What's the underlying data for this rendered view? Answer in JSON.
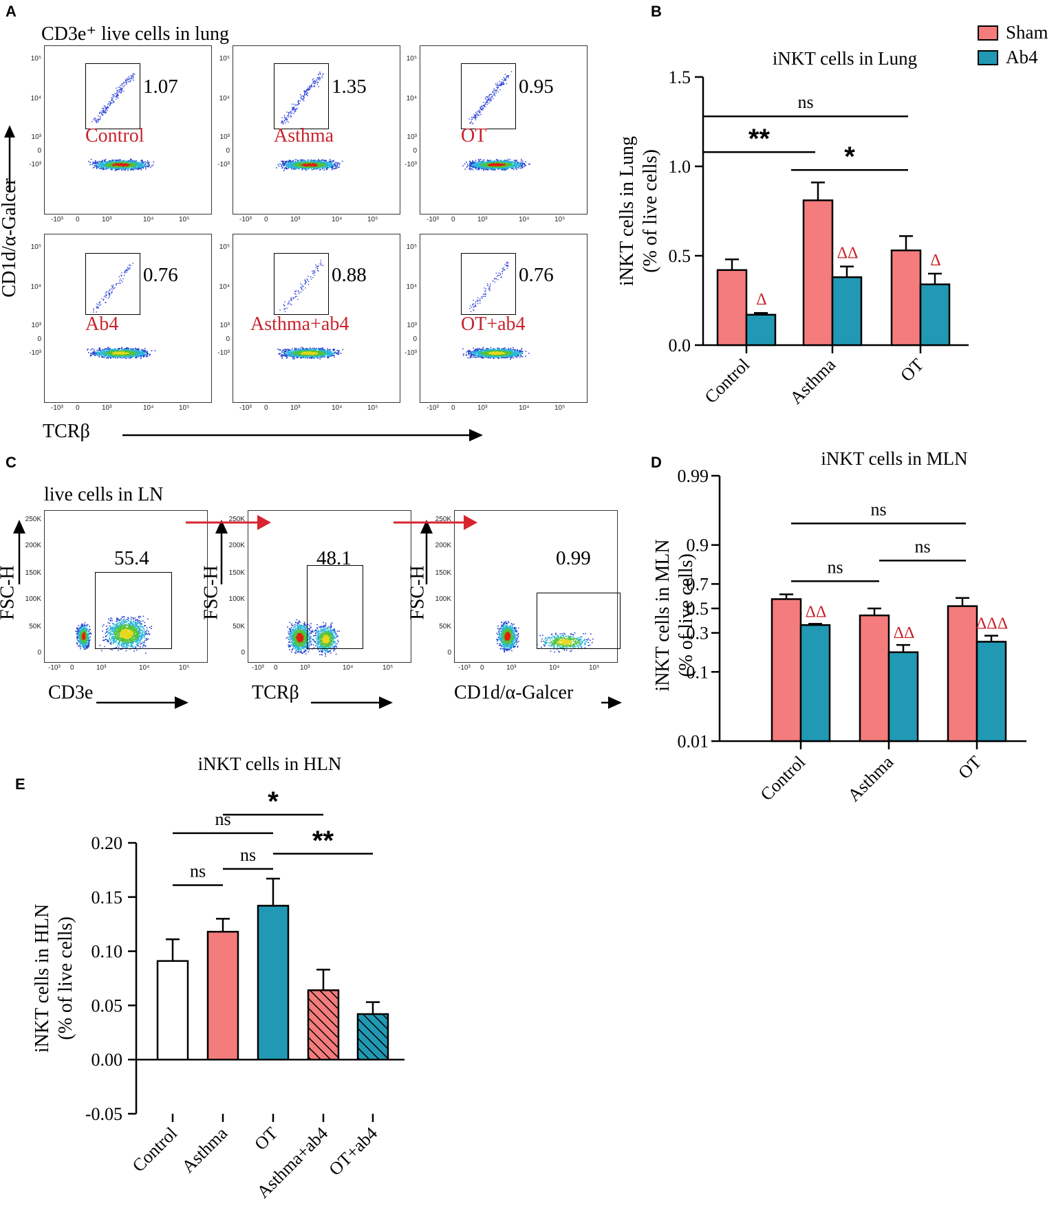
{
  "colors": {
    "sham": "#F47C7C",
    "ab4": "#2199B4",
    "delta": "#c8232c",
    "arrow_red": "#d8242f"
  },
  "panel_A": {
    "letter": "A",
    "title": "CD3e⁺ live cells in lung",
    "y_axis_label": "CD1d/α-Galcer",
    "x_axis_label": "TCRβ",
    "plots": [
      {
        "label": "Control",
        "percent": "1.07"
      },
      {
        "label": "Asthma",
        "percent": "1.35"
      },
      {
        "label": "OT",
        "percent": "0.95"
      },
      {
        "label": "Ab4",
        "percent": "0.76"
      },
      {
        "label": "Asthma+ab4",
        "percent": "0.88"
      },
      {
        "label": "OT+ab4",
        "percent": "0.76"
      }
    ],
    "x_ticks": [
      "-10³",
      "0",
      "10³",
      "10⁴",
      "10⁵"
    ],
    "y_ticks": [
      "10⁵",
      "10⁴",
      "10³",
      "0",
      "-10³"
    ]
  },
  "panel_C": {
    "letter": "C",
    "title": "live cells in LN",
    "y_axis_label": "FSC-H",
    "plots": [
      {
        "x_label": "CD3e",
        "percent": "55.4"
      },
      {
        "x_label": "TCRβ",
        "percent": "48.1"
      },
      {
        "x_label": "CD1d/α-Galcer",
        "percent": "0.99"
      }
    ],
    "y_ticks": [
      "250K",
      "200K",
      "150K",
      "100K",
      "50K",
      "0"
    ],
    "x_ticks": [
      "-10³",
      "0",
      "10³",
      "10⁴",
      "10⁵"
    ]
  },
  "chart_data": [
    {
      "panel": "B",
      "type": "bar",
      "title": "iNKT cells in Lung",
      "ylabel": "iNKT cells in Lung\n(% of live cells)",
      "ylabel_lines": [
        "iNKT cells in Lung",
        "(% of live cells)"
      ],
      "categories": [
        "Control",
        "Asthma",
        "OT"
      ],
      "ylim": [
        0,
        1.5
      ],
      "yticks": [
        "0.0",
        "0.5",
        "1.0",
        "1.5"
      ],
      "ytick_values": [
        0,
        0.5,
        1.0,
        1.5
      ],
      "legend": {
        "position": "top-right",
        "entries": [
          "Sham",
          "Ab4"
        ]
      },
      "series": [
        {
          "name": "Sham",
          "values": [
            0.42,
            0.81,
            0.53
          ],
          "errors": [
            0.06,
            0.1,
            0.08
          ]
        },
        {
          "name": "Ab4",
          "values": [
            0.17,
            0.38,
            0.34
          ],
          "errors": [
            0.01,
            0.06,
            0.06
          ]
        }
      ],
      "ab4_marks": [
        "Δ",
        "ΔΔ",
        "Δ"
      ],
      "significance": [
        {
          "from": 0,
          "to": 2,
          "label": "ns",
          "y": 1.28
        },
        {
          "from": 0,
          "to": 1,
          "label": "**",
          "y": 1.08
        },
        {
          "from": 1,
          "to": 2,
          "label": "*",
          "y": 0.98
        }
      ]
    },
    {
      "panel": "D",
      "type": "bar",
      "title": "iNKT cells in MLN",
      "ylabel_lines": [
        "iNKT cells in MLN",
        "(% of live cells)"
      ],
      "categories": [
        "Control",
        "Asthma",
        "OT"
      ],
      "yscale": "logit",
      "yticks": [
        "0.01",
        "0.1",
        "0.3",
        "0.5",
        "0.7",
        "0.9",
        "0.99"
      ],
      "ytick_values": [
        0.01,
        0.1,
        0.3,
        0.5,
        0.7,
        0.9,
        0.99
      ],
      "series": [
        {
          "name": "Sham",
          "values": [
            0.58,
            0.44,
            0.52
          ],
          "errors": [
            0.04,
            0.06,
            0.07
          ]
        },
        {
          "name": "Ab4",
          "values": [
            0.36,
            0.18,
            0.24
          ],
          "errors": [
            0.01,
            0.04,
            0.04
          ]
        }
      ],
      "ab4_marks": [
        "ΔΔ",
        "ΔΔ",
        "ΔΔΔ"
      ],
      "significance": [
        {
          "from": 0,
          "to": 2,
          "label": "ns",
          "y": 0.95
        },
        {
          "from": 0,
          "to": 1,
          "label": "ns",
          "y": 0.72
        },
        {
          "from": 1,
          "to": 2,
          "label": "ns",
          "y": 0.84
        }
      ]
    },
    {
      "panel": "E",
      "letter": "E",
      "type": "bar",
      "title": "iNKT cells in HLN",
      "ylabel_lines": [
        "iNKT cells in HLN",
        "(% of live cells)"
      ],
      "categories": [
        "Control",
        "Asthma",
        "OT",
        "Asthma+ab4",
        "OT+ab4"
      ],
      "ylim": [
        -0.05,
        0.2
      ],
      "yticks": [
        "-0.05",
        "0.00",
        "0.05",
        "0.10",
        "0.15",
        "0.20"
      ],
      "ytick_values": [
        -0.05,
        0,
        0.05,
        0.1,
        0.15,
        0.2
      ],
      "values": [
        0.091,
        0.118,
        0.142,
        0.064,
        0.042
      ],
      "errors": [
        0.02,
        0.012,
        0.025,
        0.019,
        0.011
      ],
      "fills": [
        "white",
        "sham",
        "ab4",
        "sham-hatch",
        "ab4-hatch"
      ],
      "significance": [
        {
          "from": 0,
          "to": 1,
          "label": "ns",
          "y": 0.161
        },
        {
          "from": 1,
          "to": 2,
          "label": "ns",
          "y": 0.176
        },
        {
          "from": 0,
          "to": 2,
          "label": "ns",
          "y": 0.209
        },
        {
          "from": 2,
          "to": 4,
          "label": "**",
          "y": 0.19
        },
        {
          "from": 1,
          "to": 3,
          "label": "*",
          "y": 0.226
        }
      ]
    }
  ]
}
